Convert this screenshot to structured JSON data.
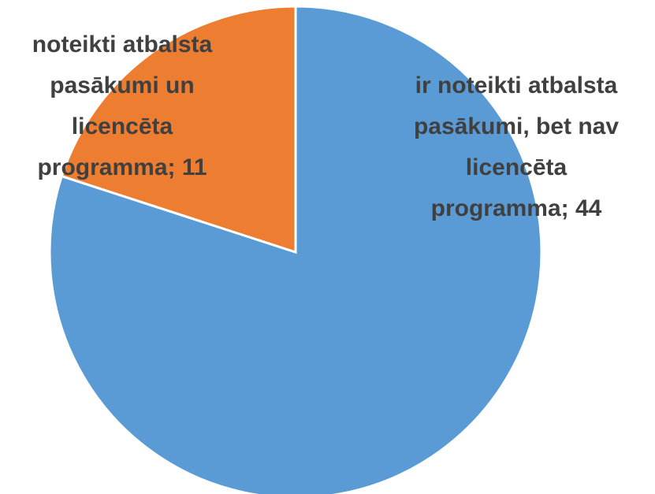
{
  "chart_data": {
    "type": "pie",
    "values": [
      44,
      11
    ],
    "value_labels": [
      [
        "ir noteikti atbalsta",
        "pasākumi, bet nav",
        "licencēta",
        "programma; 44"
      ],
      [
        "noteikti atbalsta",
        "pasākumi un",
        "licencēta",
        "programma; 11"
      ]
    ],
    "colors": [
      "#5b9bd5",
      "#ed7d31"
    ]
  }
}
